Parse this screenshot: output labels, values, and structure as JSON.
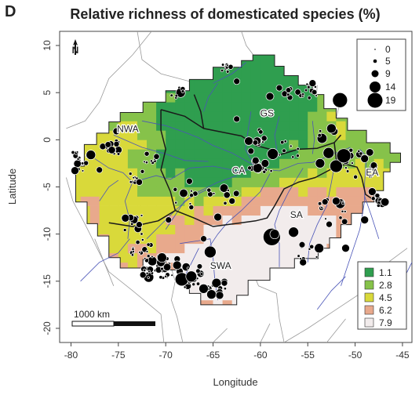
{
  "panel_letter": "D",
  "title": "Relative richness of domesticated species (%)",
  "axes": {
    "xlabel": "Longitude",
    "ylabel": "Latitude",
    "xlim": [
      -81.2,
      -44.0
    ],
    "ylim": [
      -21.5,
      11.5
    ],
    "xticks": [
      -80,
      -75,
      -70,
      -65,
      -60,
      -55,
      -50,
      -45
    ],
    "yticks": [
      10,
      5,
      0,
      -5,
      -10,
      -15,
      -20
    ]
  },
  "regions": [
    {
      "name": "NWA",
      "lon": -74.0,
      "lat": 0.8
    },
    {
      "name": "GS",
      "lon": -59.3,
      "lat": 2.5
    },
    {
      "name": "CA",
      "lon": -62.3,
      "lat": -3.6
    },
    {
      "name": "EA",
      "lon": -48.2,
      "lat": -3.8
    },
    {
      "name": "SA",
      "lon": -56.2,
      "lat": -8.3
    },
    {
      "name": "SWA",
      "lon": -64.2,
      "lat": -13.7
    }
  ],
  "size_legend": {
    "values": [
      "0",
      "5",
      "9",
      "14",
      "19"
    ]
  },
  "color_legend": {
    "items": [
      {
        "value": "1.1",
        "color": "#2f9e4f"
      },
      {
        "value": "2.8",
        "color": "#86c24a"
      },
      {
        "value": "4.5",
        "color": "#d9d93a"
      },
      {
        "value": "6.2",
        "color": "#e8a98c"
      },
      {
        "value": "7.9",
        "color": "#f2ecec"
      }
    ]
  },
  "scale_bar": {
    "label": "1000 km"
  },
  "north_arrow": {
    "label": "N"
  },
  "colors": {
    "green_dark": "#2f9e4f",
    "green_light": "#86c24a",
    "yellow": "#d9d93a",
    "salmon": "#e8a98c",
    "white": "#f2ecec",
    "rivers": "#4a55b8"
  }
}
